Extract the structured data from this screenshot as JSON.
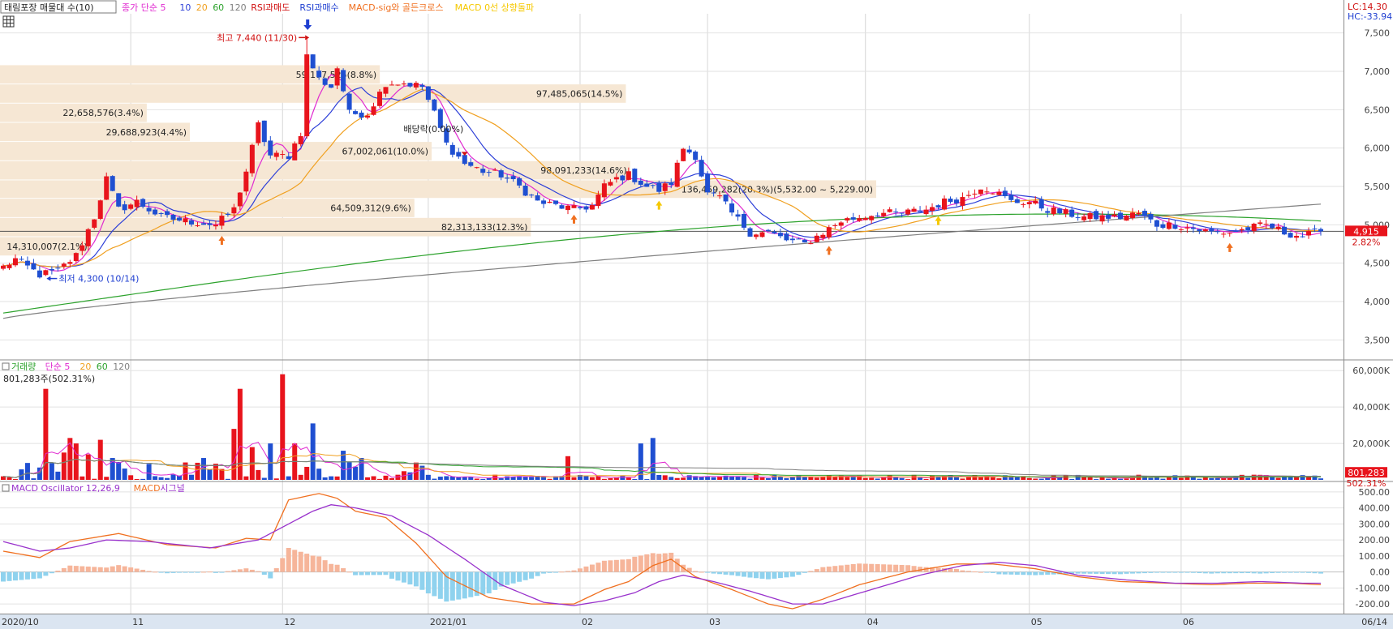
{
  "colors": {
    "up": "#e8141c",
    "down": "#1f4fd1",
    "ma5": "#e02bd0",
    "ma10": "#2d3fd8",
    "ma20": "#f0a020",
    "ma60": "#2ca22c",
    "ma120": "#7f7f7f",
    "band": "#f6e7d4",
    "hist_pos": "#f6b59a",
    "hist_neg": "#8fd2ee",
    "macd": "#f07020",
    "signal": "#9932cc"
  },
  "indicator_bar": {
    "symbol_box": "태림포장 매물대 수(10)",
    "items": [
      {
        "text": "종가 단순 5",
        "color": "#e02bd0"
      },
      {
        "text": "10",
        "color": "#2d3fd8"
      },
      {
        "text": "20",
        "color": "#f0a020"
      },
      {
        "text": "60",
        "color": "#2ca22c"
      },
      {
        "text": "120",
        "color": "#7f7f7f"
      },
      {
        "text": "RSI과매도",
        "color": "#d01010"
      },
      {
        "text": "RSI과매수",
        "color": "#1f3fd1"
      },
      {
        "text": "MACD-sig와 골든크로스",
        "color": "#f07020"
      },
      {
        "text": "MACD 0선 상향돌파",
        "color": "#f5c800"
      }
    ]
  },
  "corner": {
    "lc": "LC:14.30",
    "hc": "HC:-33.94"
  },
  "chart_data": [
    {
      "type": "candlestick",
      "name": "price",
      "ylim": [
        3250,
        7750
      ],
      "yticks": [
        3500,
        4000,
        4500,
        5000,
        5500,
        6000,
        6500,
        7000,
        7500
      ],
      "ytick_labels": [
        "3,500",
        "4,000",
        "4,500",
        "5,000",
        "5,500",
        "6,000",
        "6,500",
        "7,000",
        "7,500"
      ],
      "current": {
        "price": 4915,
        "price_label": "4,915",
        "change_label": "2.82%"
      },
      "annotations": {
        "high": {
          "label": "최고 7,440 (11/30)",
          "value": 7440
        },
        "low": {
          "label": "최저 4,300 (10/14)",
          "value": 4300
        },
        "note": {
          "label": "배당락(0.00%)",
          "value": 6250
        }
      },
      "volume_profile": [
        {
          "label": "14,310,007(2.1%)",
          "low": 4600,
          "high": 4840,
          "share": 2.1
        },
        {
          "label": "82,313,133(12.3%)",
          "low": 4850,
          "high": 5090,
          "share": 12.3
        },
        {
          "label": "64,509,312(9.6%)",
          "low": 5100,
          "high": 5340,
          "share": 9.6
        },
        {
          "label": "136,459,282(20.3%)(5,532.00 ~ 5,229.00)",
          "low": 5350,
          "high": 5580,
          "share": 20.3
        },
        {
          "label": "98,091,233(14.6%)",
          "low": 5590,
          "high": 5830,
          "share": 14.6
        },
        {
          "label": "67,002,061(10.0%)",
          "low": 5840,
          "high": 6080,
          "share": 10.0
        },
        {
          "label": "29,688,923(4.4%)",
          "low": 6090,
          "high": 6330,
          "share": 4.4
        },
        {
          "label": "22,658,576(3.4%)",
          "low": 6340,
          "high": 6580,
          "share": 3.4
        },
        {
          "label": "97,485,065(14.5%)",
          "low": 6590,
          "high": 6830,
          "share": 14.5
        },
        {
          "label": "59,177,525(8.8%)",
          "low": 6840,
          "high": 7080,
          "share": 8.8
        }
      ],
      "anchors": [
        [
          0,
          4450
        ],
        [
          2,
          4550
        ],
        [
          6,
          4350
        ],
        [
          9,
          4400
        ],
        [
          12,
          4600
        ],
        [
          15,
          5100
        ],
        [
          17,
          5600
        ],
        [
          19,
          5200
        ],
        [
          22,
          5300
        ],
        [
          26,
          5100
        ],
        [
          30,
          5050
        ],
        [
          35,
          5000
        ],
        [
          38,
          5200
        ],
        [
          40,
          5700
        ],
        [
          42,
          6300
        ],
        [
          44,
          5900
        ],
        [
          47,
          5900
        ],
        [
          49,
          6200
        ],
        [
          50,
          7200
        ],
        [
          52,
          6900
        ],
        [
          54,
          6800
        ],
        [
          55,
          7050
        ],
        [
          57,
          6450
        ],
        [
          60,
          6450
        ],
        [
          63,
          6850
        ],
        [
          66,
          6850
        ],
        [
          69,
          6800
        ],
        [
          71,
          6450
        ],
        [
          73,
          6050
        ],
        [
          76,
          5800
        ],
        [
          79,
          5700
        ],
        [
          82,
          5650
        ],
        [
          85,
          5500
        ],
        [
          88,
          5300
        ],
        [
          91,
          5250
        ],
        [
          94,
          5200
        ],
        [
          97,
          5250
        ],
        [
          99,
          5500
        ],
        [
          101,
          5600
        ],
        [
          103,
          5650
        ],
        [
          106,
          5500
        ],
        [
          108,
          5450
        ],
        [
          110,
          5550
        ],
        [
          112,
          6000
        ],
        [
          114,
          5900
        ],
        [
          116,
          5400
        ],
        [
          118,
          5350
        ],
        [
          120,
          5150
        ],
        [
          123,
          4900
        ],
        [
          126,
          4900
        ],
        [
          129,
          4800
        ],
        [
          132,
          4750
        ],
        [
          135,
          4900
        ],
        [
          138,
          5050
        ],
        [
          141,
          5100
        ],
        [
          144,
          5150
        ],
        [
          148,
          5150
        ],
        [
          152,
          5200
        ],
        [
          155,
          5300
        ],
        [
          158,
          5350
        ],
        [
          161,
          5500
        ],
        [
          163,
          5450
        ],
        [
          166,
          5300
        ],
        [
          169,
          5300
        ],
        [
          172,
          5200
        ],
        [
          175,
          5150
        ],
        [
          178,
          5100
        ],
        [
          181,
          5100
        ],
        [
          184,
          5100
        ],
        [
          187,
          5150
        ],
        [
          190,
          5000
        ],
        [
          193,
          5000
        ],
        [
          196,
          4950
        ],
        [
          199,
          4900
        ],
        [
          202,
          4900
        ],
        [
          205,
          4950
        ],
        [
          208,
          5000
        ],
        [
          211,
          4900
        ],
        [
          214,
          4850
        ],
        [
          217,
          4915
        ]
      ],
      "moving_averages": [
        {
          "period": 5,
          "color": "#e02bd0"
        },
        {
          "period": 10,
          "color": "#2d3fd8"
        },
        {
          "period": 20,
          "color": "#f0a020"
        },
        {
          "period": 60,
          "color": "#2ca22c",
          "start": 3850,
          "end": 5050
        },
        {
          "period": 120,
          "color": "#7f7f7f",
          "start": 3780,
          "end": 5270
        }
      ],
      "signals": [
        {
          "i": 36,
          "kind": "golden",
          "color": "#f07020"
        },
        {
          "i": 94,
          "kind": "golden",
          "color": "#f07020"
        },
        {
          "i": 108,
          "kind": "zero",
          "color": "#f5c800"
        },
        {
          "i": 136,
          "kind": "golden",
          "color": "#f07020"
        },
        {
          "i": 154,
          "kind": "zero",
          "color": "#f5c800"
        },
        {
          "i": 202,
          "kind": "golden",
          "color": "#f07020"
        }
      ]
    },
    {
      "type": "bar",
      "name": "volume",
      "legend": [
        {
          "text": "거래량",
          "color": "#2ca22c"
        },
        {
          "text": "단순 5",
          "color": "#e02bd0"
        },
        {
          "text": "20",
          "color": "#f0a020"
        },
        {
          "text": "60",
          "color": "#2ca22c"
        },
        {
          "text": "120",
          "color": "#7f7f7f"
        }
      ],
      "info": "801,283주(502.31%)",
      "ylim": [
        0,
        65000000
      ],
      "yticks": [
        20000000,
        40000000,
        60000000
      ],
      "ytick_labels": [
        "20,000K",
        "40,000K",
        "60,000K"
      ],
      "current": {
        "value_label": "801,283",
        "pct_label": "502.31%"
      },
      "spikes": [
        [
          7,
          50000000
        ],
        [
          10,
          15000000
        ],
        [
          11,
          23000000
        ],
        [
          12,
          20000000
        ],
        [
          14,
          14000000
        ],
        [
          16,
          22000000
        ],
        [
          18,
          12000000
        ],
        [
          33,
          12000000
        ],
        [
          38,
          28000000
        ],
        [
          39,
          50000000
        ],
        [
          41,
          18000000
        ],
        [
          44,
          20000000
        ],
        [
          46,
          58000000
        ],
        [
          48,
          20000000
        ],
        [
          51,
          31000000
        ],
        [
          56,
          16000000
        ],
        [
          59,
          12000000
        ],
        [
          93,
          13000000
        ],
        [
          105,
          20000000
        ],
        [
          107,
          23000000
        ]
      ]
    },
    {
      "type": "line+bar",
      "name": "macd",
      "legend": [
        {
          "text": "MACD Oscillator 12,26,9",
          "color": "#9932cc"
        },
        {
          "text": "MACD",
          "color": "#f07020"
        },
        {
          "text": "시그널",
          "color": "#9932cc"
        }
      ],
      "ylim": [
        -250,
        550
      ],
      "yticks": [
        -200,
        -100,
        0,
        100,
        200,
        300,
        400,
        500
      ],
      "ytick_labels": [
        "-200.00",
        "-100.00",
        "0.00",
        "100.00",
        "200.00",
        "300.00",
        "400.00",
        "500.00"
      ],
      "macd_anchors": [
        [
          0,
          130
        ],
        [
          6,
          90
        ],
        [
          11,
          190
        ],
        [
          19,
          240
        ],
        [
          27,
          170
        ],
        [
          35,
          150
        ],
        [
          40,
          210
        ],
        [
          44,
          200
        ],
        [
          47,
          450
        ],
        [
          52,
          490
        ],
        [
          55,
          460
        ],
        [
          58,
          380
        ],
        [
          63,
          340
        ],
        [
          68,
          180
        ],
        [
          73,
          -30
        ],
        [
          80,
          -160
        ],
        [
          87,
          -200
        ],
        [
          94,
          -200
        ],
        [
          99,
          -110
        ],
        [
          103,
          -60
        ],
        [
          107,
          40
        ],
        [
          110,
          80
        ],
        [
          114,
          -30
        ],
        [
          120,
          -110
        ],
        [
          126,
          -200
        ],
        [
          130,
          -230
        ],
        [
          135,
          -170
        ],
        [
          141,
          -80
        ],
        [
          149,
          0
        ],
        [
          157,
          50
        ],
        [
          163,
          50
        ],
        [
          170,
          20
        ],
        [
          177,
          -30
        ],
        [
          184,
          -60
        ],
        [
          192,
          -70
        ],
        [
          199,
          -80
        ],
        [
          205,
          -70
        ],
        [
          212,
          -70
        ],
        [
          217,
          -80
        ]
      ],
      "signal_anchors": [
        [
          0,
          190
        ],
        [
          6,
          130
        ],
        [
          11,
          150
        ],
        [
          17,
          200
        ],
        [
          24,
          190
        ],
        [
          34,
          150
        ],
        [
          42,
          200
        ],
        [
          46,
          280
        ],
        [
          51,
          380
        ],
        [
          54,
          420
        ],
        [
          58,
          400
        ],
        [
          64,
          350
        ],
        [
          70,
          230
        ],
        [
          76,
          80
        ],
        [
          82,
          -80
        ],
        [
          89,
          -190
        ],
        [
          94,
          -210
        ],
        [
          99,
          -180
        ],
        [
          104,
          -130
        ],
        [
          108,
          -60
        ],
        [
          112,
          -20
        ],
        [
          117,
          -60
        ],
        [
          123,
          -120
        ],
        [
          130,
          -200
        ],
        [
          135,
          -200
        ],
        [
          143,
          -110
        ],
        [
          151,
          -20
        ],
        [
          158,
          40
        ],
        [
          164,
          60
        ],
        [
          170,
          40
        ],
        [
          177,
          -20
        ],
        [
          185,
          -50
        ],
        [
          193,
          -70
        ],
        [
          200,
          -70
        ],
        [
          207,
          -60
        ],
        [
          214,
          -70
        ],
        [
          217,
          -70
        ]
      ]
    }
  ],
  "x_axis": {
    "labels": [
      {
        "text": "2020/10",
        "i": 0
      },
      {
        "text": "11",
        "i": 21
      },
      {
        "text": "12",
        "i": 46
      },
      {
        "text": "2021/01",
        "i": 70
      },
      {
        "text": "02",
        "i": 95
      },
      {
        "text": "03",
        "i": 116
      },
      {
        "text": "04",
        "i": 142
      },
      {
        "text": "05",
        "i": 169
      },
      {
        "text": "06",
        "i": 194
      }
    ],
    "end_label": "06/14",
    "count": 218
  }
}
